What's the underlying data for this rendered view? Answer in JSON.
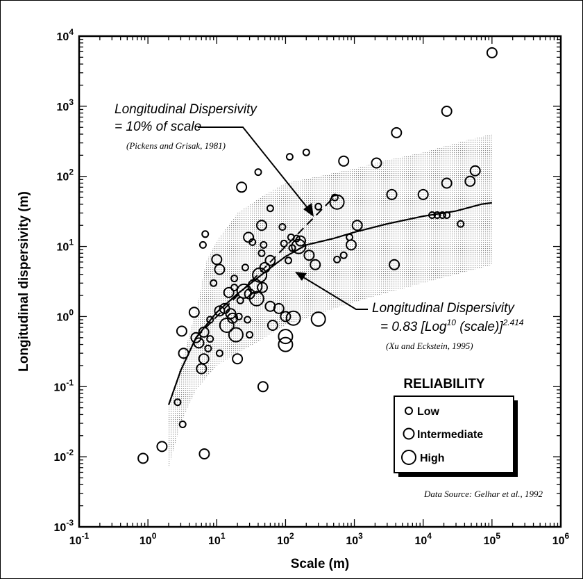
{
  "chart_data": {
    "type": "scatter",
    "xlabel": "Scale (m)",
    "ylabel": "Longitudinal dispersivity (m)",
    "xscale": "log",
    "yscale": "log",
    "xlim": [
      0.1,
      1000000
    ],
    "ylim": [
      0.001,
      10000
    ],
    "x_ticks": [
      {
        "b": "10",
        "e": "-1"
      },
      {
        "b": "10",
        "e": "0"
      },
      {
        "b": "10",
        "e": "1"
      },
      {
        "b": "10",
        "e": "2"
      },
      {
        "b": "10",
        "e": "3"
      },
      {
        "b": "10",
        "e": "4"
      },
      {
        "b": "10",
        "e": "5"
      },
      {
        "b": "10",
        "e": "6"
      }
    ],
    "y_ticks": [
      {
        "b": "10",
        "e": "-3"
      },
      {
        "b": "10",
        "e": "-2"
      },
      {
        "b": "10",
        "e": "-1"
      },
      {
        "b": "10",
        "e": "0"
      },
      {
        "b": "10",
        "e": "1"
      },
      {
        "b": "10",
        "e": "2"
      },
      {
        "b": "10",
        "e": "3"
      },
      {
        "b": "10",
        "e": "4"
      }
    ],
    "annotations": {
      "line1_title": "Longitudinal Dispersivity",
      "line1_formula": "= 10% of scale",
      "line1_cite": "(Pickens and Grisak, 1981)",
      "line2_title": "Longitudinal Dispersivity",
      "line2_formula_a": "= 0.83 [Log",
      "line2_formula_sup1": "10",
      "line2_formula_b": " (scale)]",
      "line2_formula_sup2": "2.414",
      "line2_cite": "(Xu and Eckstein, 1995)",
      "source": "Data Source:  Gelhar et al., 1992"
    },
    "legend": {
      "title": "RELIABILITY",
      "placement": "lower-right",
      "items": [
        "Low",
        "Intermediate",
        "High"
      ]
    },
    "band_lower": [
      [
        2,
        0.007
      ],
      [
        3,
        0.03
      ],
      [
        5,
        0.09
      ],
      [
        10,
        0.2
      ],
      [
        20,
        0.3
      ],
      [
        50,
        0.5
      ],
      [
        100,
        0.75
      ],
      [
        300,
        1.1
      ],
      [
        1000,
        1.6
      ],
      [
        3000,
        2.2
      ],
      [
        10000,
        3
      ],
      [
        30000,
        4
      ],
      [
        100000,
        5.5
      ]
    ],
    "band_upper": [
      [
        2,
        0.05
      ],
      [
        3,
        0.2
      ],
      [
        5,
        1.2
      ],
      [
        7,
        6
      ],
      [
        10,
        12
      ],
      [
        20,
        30
      ],
      [
        50,
        55
      ],
      [
        100,
        80
      ],
      [
        300,
        100
      ],
      [
        1000,
        130
      ],
      [
        3000,
        170
      ],
      [
        10000,
        220
      ],
      [
        30000,
        300
      ],
      [
        100000,
        400
      ]
    ],
    "fit_line": [
      [
        2,
        0.055
      ],
      [
        3,
        0.17
      ],
      [
        5,
        0.5
      ],
      [
        10,
        1.15
      ],
      [
        20,
        2.1
      ],
      [
        50,
        4.3
      ],
      [
        100,
        7.2
      ],
      [
        200,
        10.5
      ],
      [
        500,
        13
      ],
      [
        1000,
        16
      ],
      [
        3000,
        21
      ],
      [
        10000,
        27
      ],
      [
        30000,
        32
      ],
      [
        70000,
        40
      ],
      [
        100000,
        42
      ]
    ],
    "ten_percent_line": [
      [
        5,
        0.5
      ],
      [
        500,
        50
      ]
    ],
    "points": [
      {
        "x": 0.85,
        "y": 0.0095,
        "r": "intermediate"
      },
      {
        "x": 1.6,
        "y": 0.014,
        "r": "intermediate"
      },
      {
        "x": 2.7,
        "y": 0.06,
        "r": "low"
      },
      {
        "x": 3.2,
        "y": 0.029,
        "r": "low"
      },
      {
        "x": 6.6,
        "y": 0.011,
        "r": "intermediate"
      },
      {
        "x": 3.1,
        "y": 0.62,
        "r": "intermediate"
      },
      {
        "x": 3.3,
        "y": 0.3,
        "r": "intermediate"
      },
      {
        "x": 4.7,
        "y": 1.15,
        "r": "intermediate"
      },
      {
        "x": 5.0,
        "y": 0.5,
        "r": "intermediate"
      },
      {
        "x": 5.5,
        "y": 0.42,
        "r": "intermediate"
      },
      {
        "x": 6.0,
        "y": 0.18,
        "r": "intermediate"
      },
      {
        "x": 6.5,
        "y": 0.25,
        "r": "intermediate"
      },
      {
        "x": 6.5,
        "y": 0.6,
        "r": "intermediate"
      },
      {
        "x": 7.5,
        "y": 0.35,
        "r": "low"
      },
      {
        "x": 8.0,
        "y": 0.48,
        "r": "low"
      },
      {
        "x": 6.3,
        "y": 10.5,
        "r": "low"
      },
      {
        "x": 6.8,
        "y": 15,
        "r": "low"
      },
      {
        "x": 8.0,
        "y": 0.9,
        "r": "low"
      },
      {
        "x": 9.0,
        "y": 3.0,
        "r": "low"
      },
      {
        "x": 10,
        "y": 6.5,
        "r": "intermediate"
      },
      {
        "x": 11,
        "y": 4.7,
        "r": "intermediate"
      },
      {
        "x": 11,
        "y": 1.2,
        "r": "intermediate"
      },
      {
        "x": 11,
        "y": 0.3,
        "r": "low"
      },
      {
        "x": 13,
        "y": 1.3,
        "r": "intermediate"
      },
      {
        "x": 14,
        "y": 0.75,
        "r": "high"
      },
      {
        "x": 15,
        "y": 2.2,
        "r": "intermediate"
      },
      {
        "x": 16,
        "y": 1.1,
        "r": "intermediate"
      },
      {
        "x": 17,
        "y": 0.95,
        "r": "intermediate"
      },
      {
        "x": 18,
        "y": 2.6,
        "r": "low"
      },
      {
        "x": 18,
        "y": 3.5,
        "r": "low"
      },
      {
        "x": 19,
        "y": 0.55,
        "r": "high"
      },
      {
        "x": 20,
        "y": 0.25,
        "r": "intermediate"
      },
      {
        "x": 21,
        "y": 1.0,
        "r": "low"
      },
      {
        "x": 22,
        "y": 1.7,
        "r": "low"
      },
      {
        "x": 23,
        "y": 70,
        "r": "intermediate"
      },
      {
        "x": 25,
        "y": 2.3,
        "r": "high"
      },
      {
        "x": 26,
        "y": 5.0,
        "r": "low"
      },
      {
        "x": 28,
        "y": 0.9,
        "r": "low"
      },
      {
        "x": 29,
        "y": 13.5,
        "r": "intermediate"
      },
      {
        "x": 30,
        "y": 2.1,
        "r": "intermediate"
      },
      {
        "x": 30,
        "y": 0.55,
        "r": "low"
      },
      {
        "x": 33,
        "y": 11.5,
        "r": "low"
      },
      {
        "x": 36,
        "y": 2.7,
        "r": "high"
      },
      {
        "x": 38,
        "y": 1.8,
        "r": "high"
      },
      {
        "x": 40,
        "y": 115,
        "r": "low"
      },
      {
        "x": 42,
        "y": 3.9,
        "r": "high"
      },
      {
        "x": 45,
        "y": 20,
        "r": "intermediate"
      },
      {
        "x": 45,
        "y": 8.0,
        "r": "low"
      },
      {
        "x": 46,
        "y": 2.6,
        "r": "intermediate"
      },
      {
        "x": 47,
        "y": 0.1,
        "r": "intermediate"
      },
      {
        "x": 48,
        "y": 10.5,
        "r": "low"
      },
      {
        "x": 50,
        "y": 5.0,
        "r": "intermediate"
      },
      {
        "x": 60,
        "y": 35,
        "r": "low"
      },
      {
        "x": 60,
        "y": 6.3,
        "r": "intermediate"
      },
      {
        "x": 60,
        "y": 1.4,
        "r": "intermediate"
      },
      {
        "x": 65,
        "y": 0.75,
        "r": "intermediate"
      },
      {
        "x": 80,
        "y": 1.3,
        "r": "intermediate"
      },
      {
        "x": 90,
        "y": 19,
        "r": "low"
      },
      {
        "x": 95,
        "y": 11,
        "r": "low"
      },
      {
        "x": 100,
        "y": 1.0,
        "r": "intermediate"
      },
      {
        "x": 100,
        "y": 0.52,
        "r": "high"
      },
      {
        "x": 100,
        "y": 0.4,
        "r": "high"
      },
      {
        "x": 110,
        "y": 6.3,
        "r": "low"
      },
      {
        "x": 115,
        "y": 190,
        "r": "low"
      },
      {
        "x": 120,
        "y": 13.5,
        "r": "low"
      },
      {
        "x": 125,
        "y": 9.5,
        "r": "low"
      },
      {
        "x": 130,
        "y": 0.95,
        "r": "high"
      },
      {
        "x": 145,
        "y": 13,
        "r": "low"
      },
      {
        "x": 155,
        "y": 10,
        "r": "high"
      },
      {
        "x": 165,
        "y": 12,
        "r": "intermediate"
      },
      {
        "x": 200,
        "y": 220,
        "r": "low"
      },
      {
        "x": 220,
        "y": 7.5,
        "r": "intermediate"
      },
      {
        "x": 270,
        "y": 5.5,
        "r": "intermediate"
      },
      {
        "x": 300,
        "y": 0.92,
        "r": "high"
      },
      {
        "x": 300,
        "y": 37,
        "r": "low"
      },
      {
        "x": 520,
        "y": 50,
        "r": "low"
      },
      {
        "x": 560,
        "y": 43,
        "r": "high"
      },
      {
        "x": 560,
        "y": 6.5,
        "r": "low"
      },
      {
        "x": 700,
        "y": 165,
        "r": "intermediate"
      },
      {
        "x": 700,
        "y": 7.5,
        "r": "low"
      },
      {
        "x": 850,
        "y": 13.5,
        "r": "low"
      },
      {
        "x": 900,
        "y": 10.5,
        "r": "intermediate"
      },
      {
        "x": 1100,
        "y": 20,
        "r": "intermediate"
      },
      {
        "x": 2100,
        "y": 155,
        "r": "intermediate"
      },
      {
        "x": 3500,
        "y": 55,
        "r": "intermediate"
      },
      {
        "x": 3800,
        "y": 5.5,
        "r": "intermediate"
      },
      {
        "x": 4100,
        "y": 420,
        "r": "intermediate"
      },
      {
        "x": 10000,
        "y": 55,
        "r": "intermediate"
      },
      {
        "x": 13500,
        "y": 28,
        "r": "low"
      },
      {
        "x": 16000,
        "y": 28,
        "r": "low"
      },
      {
        "x": 19000,
        "y": 28,
        "r": "low"
      },
      {
        "x": 22000,
        "y": 850,
        "r": "intermediate"
      },
      {
        "x": 22000,
        "y": 80,
        "r": "intermediate"
      },
      {
        "x": 22000,
        "y": 28,
        "r": "low"
      },
      {
        "x": 35000,
        "y": 21,
        "r": "low"
      },
      {
        "x": 48000,
        "y": 85,
        "r": "intermediate"
      },
      {
        "x": 57000,
        "y": 120,
        "r": "intermediate"
      },
      {
        "x": 100000,
        "y": 5800,
        "r": "intermediate"
      }
    ]
  }
}
